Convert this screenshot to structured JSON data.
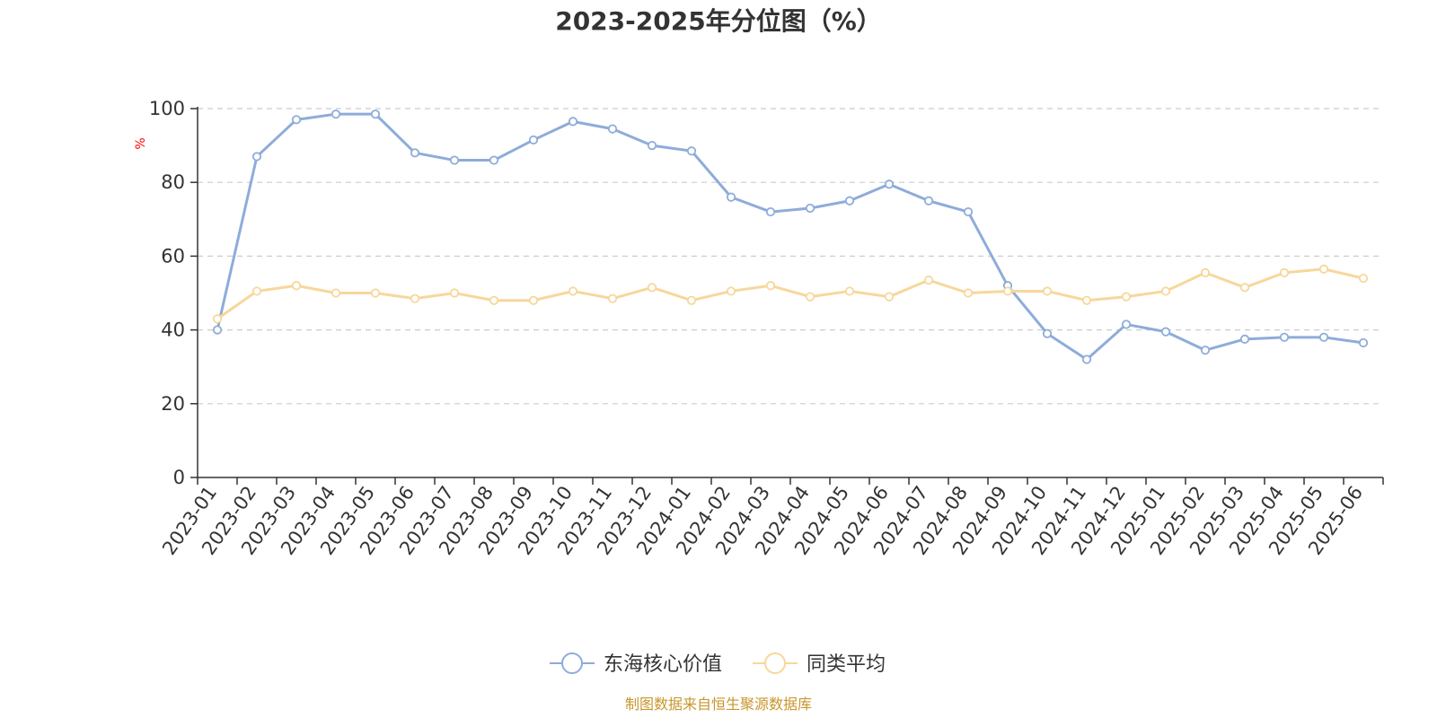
{
  "chart_data": {
    "type": "line",
    "title": "2023-2025年分位图（%）",
    "ylabel": "%",
    "xlabel": "",
    "ylim": [
      0,
      100
    ],
    "yticks": [
      "0",
      "20",
      "40",
      "60",
      "80",
      "100"
    ],
    "grid": true,
    "legend_position": "bottom-center",
    "categories": [
      "2023-01",
      "2023-02",
      "2023-03",
      "2023-04",
      "2023-05",
      "2023-06",
      "2023-07",
      "2023-08",
      "2023-09",
      "2023-10",
      "2023-11",
      "2023-12",
      "2024-01",
      "2024-02",
      "2024-03",
      "2024-04",
      "2024-05",
      "2024-06",
      "2024-07",
      "2024-08",
      "2024-09",
      "2024-10",
      "2024-11",
      "2024-12",
      "2025-01",
      "2025-02",
      "2025-03",
      "2025-04",
      "2025-05",
      "2025-06"
    ],
    "series": [
      {
        "name": "东海核心价值",
        "color": "#8eacda",
        "values": [
          40,
          87,
          97,
          98.5,
          98.5,
          88,
          86,
          86,
          91.5,
          96.5,
          94.5,
          90,
          88.5,
          76,
          72,
          73,
          75,
          79.5,
          75,
          72,
          52,
          39,
          32,
          41.5,
          39.5,
          34.5,
          37.5,
          38,
          38,
          36.5
        ]
      },
      {
        "name": "同类平均",
        "color": "#f7d79a",
        "values": [
          43,
          50.5,
          52,
          50,
          50,
          48.5,
          50,
          48,
          48,
          50.5,
          48.5,
          51.5,
          48,
          50.5,
          52,
          49,
          50.5,
          49,
          53.5,
          50,
          50.5,
          50.5,
          48,
          49,
          50.5,
          55.5,
          51.5,
          55.5,
          56.5,
          54
        ]
      }
    ]
  },
  "colors": {
    "axis": "#333333",
    "grid": "#cccccc",
    "ylabel": "#ff0000",
    "source": "#c8962c"
  },
  "source_note": "制图数据来自恒生聚源数据库"
}
